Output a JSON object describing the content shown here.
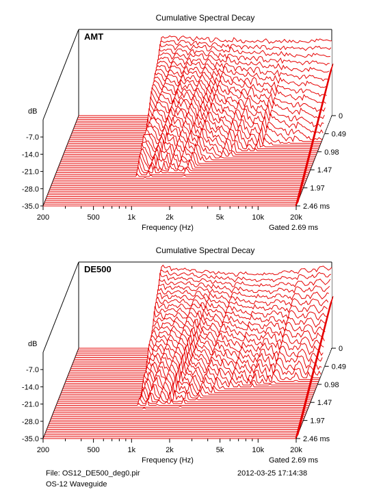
{
  "colors": {
    "trace": "#e60000",
    "axis": "#000000",
    "background": "#ffffff"
  },
  "chart_data": [
    {
      "type": "waterfall",
      "title": "Cumulative Spectral Decay",
      "label": "AMT",
      "xlabel": "Frequency (Hz)",
      "x_scale": "log",
      "xlim": [
        200,
        20000
      ],
      "x_ticks": [
        "200",
        "500",
        "1k",
        "2k",
        "5k",
        "10k",
        "20k"
      ],
      "ylabel": "dB",
      "ylim": [
        -35,
        0
      ],
      "y_ticks": [
        "-7.0",
        "-14.0",
        "-21.0",
        "-28.0",
        "-35.0"
      ],
      "time_unit": "ms",
      "time_ticks": [
        "0",
        "0.49",
        "0.98",
        "1.47",
        "1.97",
        "2.46 ms"
      ],
      "time_range_ms": [
        0,
        2.46
      ],
      "gated": "Gated 2.69 ms",
      "slices": 50,
      "grid": false,
      "legend": "none"
    },
    {
      "type": "waterfall",
      "title": "Cumulative Spectral Decay",
      "label": "DE500",
      "xlabel": "Frequency (Hz)",
      "x_scale": "log",
      "xlim": [
        200,
        20000
      ],
      "x_ticks": [
        "200",
        "500",
        "1k",
        "2k",
        "5k",
        "10k",
        "20k"
      ],
      "ylabel": "dB",
      "ylim": [
        -35,
        0
      ],
      "y_ticks": [
        "-7.0",
        "-14.0",
        "-21.0",
        "-28.0",
        "-35.0"
      ],
      "time_unit": "ms",
      "time_ticks": [
        "0",
        "0.49",
        "0.98",
        "1.47",
        "1.97",
        "2.46 ms"
      ],
      "time_range_ms": [
        0,
        2.46
      ],
      "gated": "Gated 2.69 ms",
      "slices": 50,
      "grid": false,
      "legend": "none"
    }
  ],
  "footer": {
    "file": "File: OS12_DE500_deg0.pir",
    "datetime": "2012-03-25   17:14:38",
    "note": "OS-12 Waveguide"
  }
}
